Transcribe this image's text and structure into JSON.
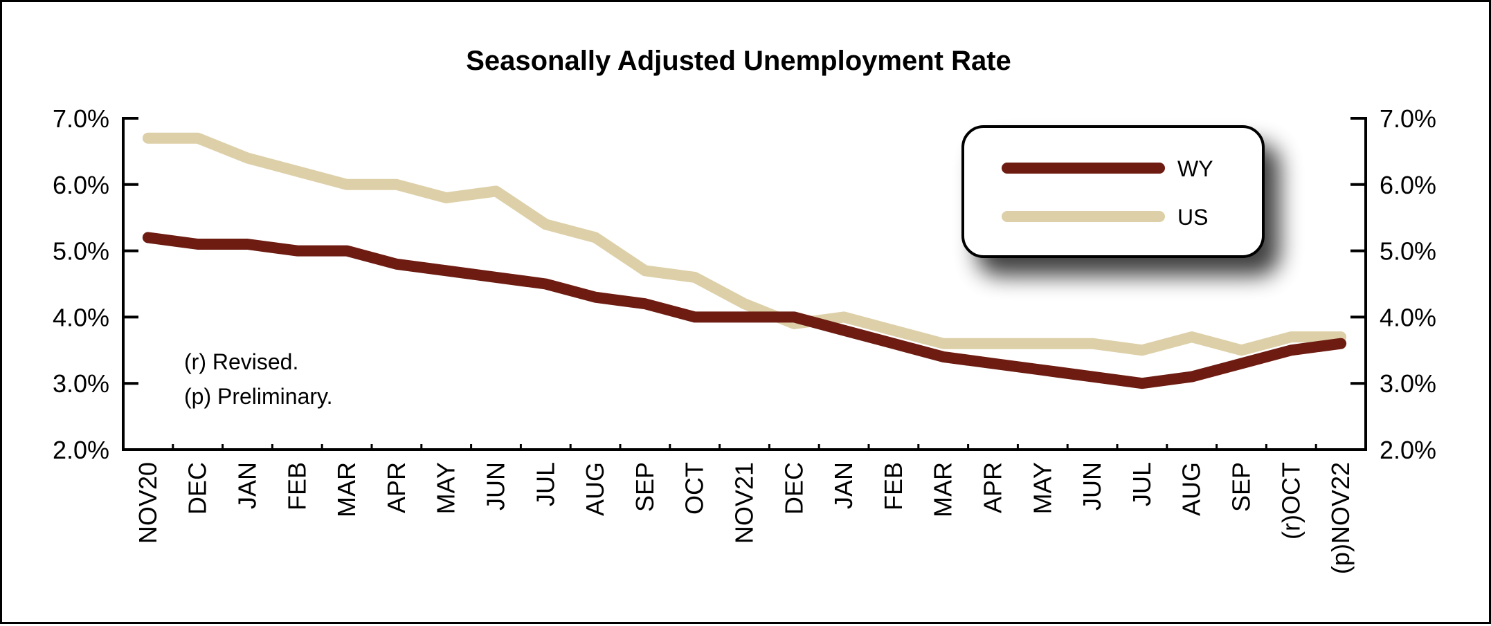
{
  "chart_data": {
    "type": "line",
    "title": "Seasonally Adjusted Unemployment Rate",
    "xlabel": "",
    "ylabel": "",
    "categories": [
      "NOV20",
      "DEC",
      "JAN",
      "FEB",
      "MAR",
      "APR",
      "MAY",
      "JUN",
      "JUL",
      "AUG",
      "SEP",
      "OCT",
      "NOV21",
      "DEC",
      "JAN",
      "FEB",
      "MAR",
      "APR",
      "MAY",
      "JUN",
      "JUL",
      "AUG",
      "SEP",
      "(r)OCT",
      "(p)NOV22"
    ],
    "series": [
      {
        "name": "WY",
        "color": "#6e1c12",
        "values": [
          5.2,
          5.1,
          5.1,
          5.0,
          5.0,
          4.8,
          4.7,
          4.6,
          4.5,
          4.3,
          4.2,
          4.0,
          4.0,
          4.0,
          3.8,
          3.6,
          3.4,
          3.3,
          3.2,
          3.1,
          3.0,
          3.1,
          3.3,
          3.5,
          3.6
        ]
      },
      {
        "name": "US",
        "color": "#ddd0a8",
        "values": [
          6.7,
          6.7,
          6.4,
          6.2,
          6.0,
          6.0,
          5.8,
          5.9,
          5.4,
          5.2,
          4.7,
          4.6,
          4.2,
          3.9,
          4.0,
          3.8,
          3.6,
          3.6,
          3.6,
          3.6,
          3.5,
          3.7,
          3.5,
          3.7,
          3.7
        ]
      }
    ],
    "ylim": [
      2.0,
      7.0
    ],
    "yticks": [
      "2.0%",
      "3.0%",
      "4.0%",
      "5.0%",
      "6.0%",
      "7.0%"
    ],
    "right_axis": true,
    "grid": false,
    "legend_position": "top-right",
    "notes": [
      "(r) Revised.",
      "(p) Preliminary."
    ]
  }
}
